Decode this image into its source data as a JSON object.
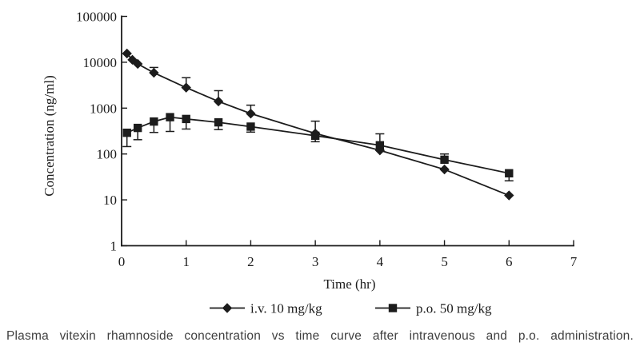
{
  "figure": {
    "caption": "Plasma vitexin rhamnoside concentration vs time curve after intravenous and p.o. administration."
  },
  "colors": {
    "ink": "#1c1c1c",
    "caption_text": "#3f3f3f",
    "background": "#ffffff"
  },
  "chart_data": {
    "type": "line",
    "title": "",
    "xlabel": "Time (hr)",
    "ylabel": "Concentration (ng/ml)",
    "grid": false,
    "legend_position": "bottom-center",
    "x_axis": {
      "min": 0,
      "max": 7,
      "ticks": [
        0,
        1,
        2,
        3,
        4,
        5,
        6,
        7
      ]
    },
    "y_axis": {
      "scale": "log",
      "min": 1,
      "max": 100000,
      "ticks": [
        1,
        10,
        100,
        1000,
        10000,
        100000
      ],
      "tick_labels": [
        "1",
        "10",
        "100",
        "1000",
        "10000",
        "100000"
      ]
    },
    "series": [
      {
        "name": "i.v. 10 mg/kg",
        "marker": "diamond",
        "points": [
          {
            "t": 0.083,
            "c": 15500
          },
          {
            "t": 0.167,
            "c": 11300
          },
          {
            "t": 0.25,
            "c": 9200
          },
          {
            "t": 0.5,
            "c": 5900,
            "hi": 7700
          },
          {
            "t": 1,
            "c": 2800,
            "hi": 4600
          },
          {
            "t": 1.5,
            "c": 1400,
            "hi": 2400
          },
          {
            "t": 2,
            "c": 760,
            "hi": 1160
          },
          {
            "t": 3,
            "c": 280,
            "hi": 520,
            "lo": 185
          },
          {
            "t": 4,
            "c": 120
          },
          {
            "t": 5,
            "c": 46
          },
          {
            "t": 6,
            "c": 12.5
          }
        ]
      },
      {
        "name": "p.o. 50 mg/kg",
        "marker": "square",
        "points": [
          {
            "t": 0.083,
            "c": 290,
            "lo": 145
          },
          {
            "t": 0.25,
            "c": 370,
            "lo": 205
          },
          {
            "t": 0.5,
            "c": 510,
            "lo": 295
          },
          {
            "t": 0.75,
            "c": 635,
            "lo": 310
          },
          {
            "t": 1,
            "c": 580,
            "lo": 350
          },
          {
            "t": 1.5,
            "c": 490,
            "lo": 340
          },
          {
            "t": 2,
            "c": 395,
            "lo": 300
          },
          {
            "t": 3,
            "c": 250
          },
          {
            "t": 4,
            "c": 155,
            "hi": 275
          },
          {
            "t": 5,
            "c": 75,
            "hi": 100
          },
          {
            "t": 6,
            "c": 38,
            "lo": 26
          }
        ]
      }
    ]
  }
}
